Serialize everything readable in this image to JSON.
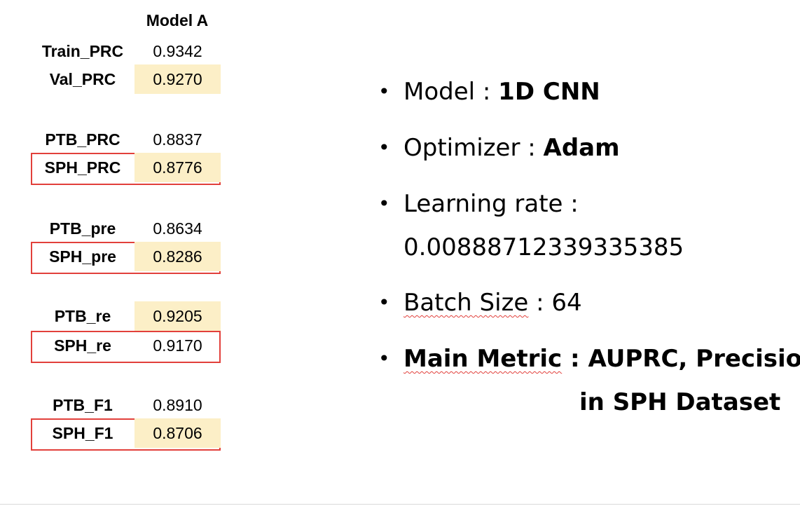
{
  "table": {
    "header": "Model A",
    "rows": [
      {
        "label": "Train_PRC",
        "value": "0.9342",
        "highlight": false,
        "boxed": false
      },
      {
        "label": "Val_PRC",
        "value": "0.9270",
        "highlight": true,
        "boxed": false
      },
      {
        "label": "PTB_PRC",
        "value": "0.8837",
        "highlight": false,
        "boxed": false
      },
      {
        "label": "SPH_PRC",
        "value": "0.8776",
        "highlight": true,
        "boxed": true
      },
      {
        "label": "PTB_pre",
        "value": "0.8634",
        "highlight": false,
        "boxed": false
      },
      {
        "label": "SPH_pre",
        "value": "0.8286",
        "highlight": true,
        "boxed": true
      },
      {
        "label": "PTB_re",
        "value": "0.9205",
        "highlight": true,
        "boxed": false
      },
      {
        "label": "SPH_re",
        "value": "0.9170",
        "highlight": false,
        "boxed": true
      },
      {
        "label": "PTB_F1",
        "value": "0.8910",
        "highlight": false,
        "boxed": false
      },
      {
        "label": "SPH_F1",
        "value": "0.8706",
        "highlight": true,
        "boxed": true
      }
    ],
    "highlight_color": "#fcefc7",
    "box_color": "#e2403b"
  },
  "bullets": {
    "model_label": "Model : ",
    "model_value": "1D CNN",
    "optimizer_label": "Optimizer : ",
    "optimizer_value": "Adam",
    "lr_label": "Learning rate :",
    "lr_value": "0.00888712339335385",
    "batch_label": "Batch Size",
    "batch_sep": " : ",
    "batch_value": "64",
    "metric_label": "Main Metric",
    "metric_sep": " : ",
    "metric_value": "AUPRC, Precision",
    "metric_value_cont": "in SPH Dataset"
  }
}
